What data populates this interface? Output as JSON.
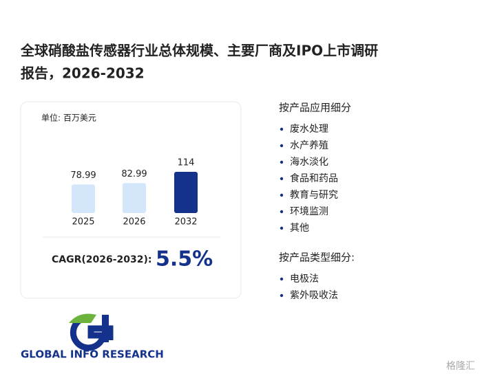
{
  "title": [
    "全球硝酸盐传感器行业总体规模、主要厂商及IPO上市调研",
    "报告，2026-2032"
  ],
  "chart_data": {
    "type": "bar",
    "unit_label": "单位: 百万美元",
    "categories": [
      "2025",
      "2026",
      "2032"
    ],
    "values": [
      78.99,
      82.99,
      114
    ],
    "colors": [
      "#d4e6fa",
      "#d4e6fa",
      "#14318c"
    ]
  },
  "cagr": {
    "label": "CAGR(2026-2032):",
    "value": "5.5%"
  },
  "sections": [
    {
      "heading": "按产品应用细分",
      "items": [
        "废水处理",
        "水产养殖",
        "海水淡化",
        "食品和药品",
        "教育与研究",
        "环境监测",
        "其他"
      ]
    },
    {
      "heading": "按产品类型细分:",
      "items": [
        "电极法",
        "紫外吸收法"
      ]
    }
  ],
  "logo": "GLOBAL INFO RESEARCH",
  "watermark": "格隆汇"
}
